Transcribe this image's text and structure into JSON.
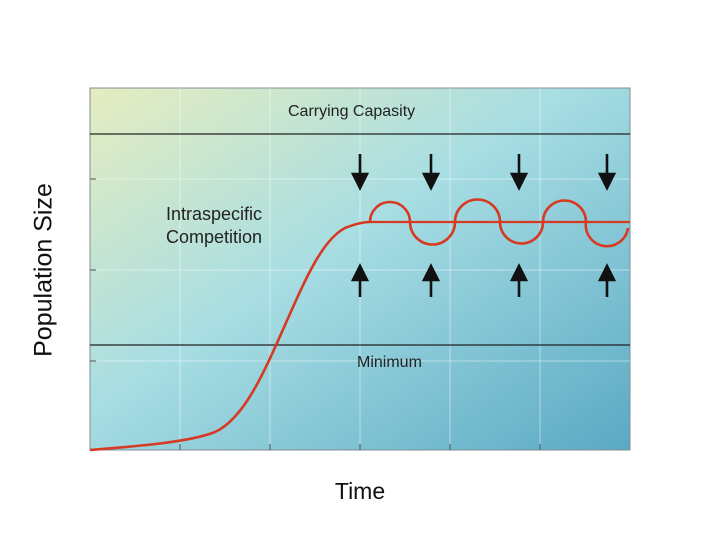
{
  "diagram": {
    "y_axis_label": "Population Size",
    "x_axis_label": "Time",
    "bands": {
      "carrying_capacity": "Carrying Capasity",
      "minimum": "Minimum"
    },
    "annotation": {
      "line1": "Intraspecific",
      "line2": "Competition"
    },
    "colors": {
      "curve": "#d63a22",
      "arrow": "#111111",
      "bg_left": "#e6edbf",
      "bg_mid": "#9fdbe3",
      "bg_right": "#5fb0c9",
      "band_line": "#222222",
      "grid": "#ffffff"
    },
    "arrow_groups": 4,
    "arrow_directions": [
      "down-from-top",
      "up-from-bottom"
    ]
  }
}
